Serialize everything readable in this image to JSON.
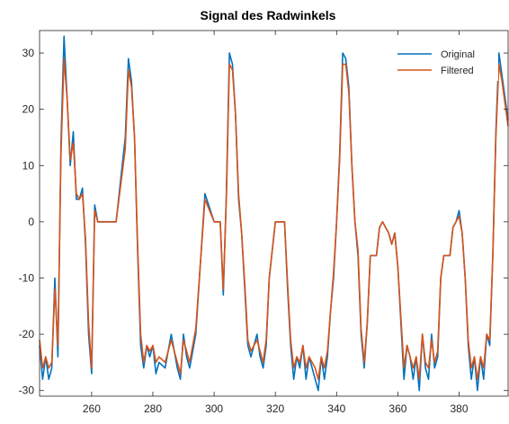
{
  "chart_data": {
    "type": "line",
    "title": "Signal des Radwinkels",
    "xlabel": "",
    "ylabel": "",
    "xlim": [
      243,
      396
    ],
    "ylim": [
      -31,
      34
    ],
    "xticks": [
      260,
      280,
      300,
      320,
      340,
      360,
      380
    ],
    "yticks": [
      -30,
      -20,
      -10,
      0,
      10,
      20,
      30
    ],
    "legend_position": "top-right",
    "series": [
      {
        "name": "Original",
        "color": "#0072BD",
        "x": [
          243,
          244,
          245,
          246,
          247,
          248,
          249,
          250,
          251,
          252,
          253,
          254,
          255,
          256,
          257,
          258,
          259,
          260,
          261,
          262,
          264,
          268,
          271,
          272,
          273,
          274,
          275,
          276,
          277,
          278,
          279,
          280,
          281,
          282,
          284,
          286,
          288,
          289,
          290,
          291,
          292,
          294,
          297,
          300,
          302,
          303,
          304,
          305,
          306,
          307,
          308,
          309,
          310,
          311,
          312,
          313,
          314,
          315,
          316,
          317,
          318,
          320,
          321,
          322,
          323,
          324,
          325,
          326,
          327,
          328,
          329,
          330,
          331,
          332,
          333,
          334,
          335,
          336,
          337,
          338,
          339,
          340,
          341,
          342,
          343,
          344,
          345,
          346,
          347,
          348,
          349,
          350,
          351,
          352,
          353,
          354,
          355,
          356,
          357,
          358,
          359,
          360,
          361,
          362,
          363,
          364,
          365,
          366,
          367,
          368,
          369,
          370,
          371,
          372,
          373,
          374,
          375,
          376,
          377,
          378,
          379,
          380,
          381,
          382,
          383,
          384,
          385,
          386,
          387,
          388,
          389,
          390,
          391,
          392,
          393,
          394,
          395,
          396
        ],
        "y": [
          -22,
          -28,
          -24,
          -28,
          -26,
          -10,
          -24,
          14,
          33,
          22,
          10,
          16,
          4,
          4,
          6,
          -4,
          -20,
          -27,
          3,
          0,
          0,
          0,
          15,
          29,
          25,
          15,
          -5,
          -22,
          -26,
          -22,
          -24,
          -22,
          -27,
          -25,
          -26,
          -20,
          -26,
          -28,
          -20,
          -24,
          -26,
          -20,
          5,
          0,
          0,
          -13,
          5,
          30,
          28,
          19,
          4,
          -2,
          -12,
          -22,
          -24,
          -22,
          -20,
          -24,
          -26,
          -22,
          -10,
          0,
          0,
          0,
          0,
          -12,
          -22,
          -28,
          -24,
          -26,
          -22,
          -28,
          -24,
          -26,
          -28,
          -30,
          -24,
          -28,
          -24,
          -16,
          -10,
          0,
          12,
          30,
          29,
          24,
          10,
          0,
          -6,
          -20,
          -26,
          -18,
          -6,
          -6,
          -6,
          -1,
          0,
          -1,
          -2,
          -4,
          -2,
          -8,
          -18,
          -28,
          -22,
          -24,
          -28,
          -24,
          -30,
          -20,
          -26,
          -28,
          -20,
          -26,
          -24,
          -10,
          -6,
          -6,
          -6,
          -1,
          0,
          2,
          -2,
          -10,
          -22,
          -28,
          -24,
          -30,
          -24,
          -28,
          -20,
          -22,
          -6,
          16,
          30,
          26,
          22,
          18
        ]
      },
      {
        "name": "Filtered",
        "color": "#D95319",
        "x": [
          243,
          244,
          245,
          246,
          247,
          248,
          249,
          250,
          251,
          252,
          253,
          254,
          255,
          256,
          257,
          258,
          259,
          260,
          261,
          262,
          264,
          268,
          271,
          272,
          273,
          274,
          275,
          276,
          277,
          278,
          279,
          280,
          281,
          282,
          284,
          286,
          288,
          289,
          290,
          291,
          292,
          294,
          297,
          300,
          302,
          303,
          304,
          305,
          306,
          307,
          308,
          309,
          310,
          311,
          312,
          313,
          314,
          315,
          316,
          317,
          318,
          320,
          321,
          322,
          323,
          324,
          325,
          326,
          327,
          328,
          329,
          330,
          331,
          332,
          333,
          334,
          335,
          336,
          337,
          338,
          339,
          340,
          341,
          342,
          343,
          344,
          345,
          346,
          347,
          348,
          349,
          350,
          351,
          352,
          353,
          354,
          355,
          356,
          357,
          358,
          359,
          360,
          361,
          362,
          363,
          364,
          365,
          366,
          367,
          368,
          369,
          370,
          371,
          372,
          373,
          374,
          375,
          376,
          377,
          378,
          379,
          380,
          381,
          382,
          383,
          384,
          385,
          386,
          387,
          388,
          389,
          390,
          391,
          392,
          393,
          394,
          395,
          396
        ],
        "y": [
          -21,
          -26,
          -24,
          -26,
          -25,
          -12,
          -22,
          12,
          29,
          22,
          11,
          14,
          5,
          4,
          5,
          -3,
          -18,
          -26,
          2,
          0,
          0,
          0,
          13,
          27,
          24,
          15,
          -4,
          -20,
          -25,
          -22,
          -23,
          -22,
          -25,
          -24,
          -25,
          -21,
          -25,
          -27,
          -21,
          -23,
          -25,
          -19,
          4,
          0,
          0,
          -12,
          4,
          28,
          27,
          19,
          5,
          -2,
          -11,
          -21,
          -23,
          -22,
          -21,
          -23,
          -25,
          -21,
          -10,
          0,
          0,
          0,
          0,
          -11,
          -21,
          -26,
          -24,
          -25,
          -22,
          -26,
          -24,
          -25,
          -26,
          -28,
          -24,
          -26,
          -23,
          -16,
          -9,
          0,
          11,
          28,
          28,
          23,
          10,
          0,
          -5,
          -19,
          -25,
          -18,
          -6,
          -6,
          -6,
          -1,
          0,
          -1,
          -2,
          -4,
          -2,
          -8,
          -17,
          -26,
          -22,
          -24,
          -26,
          -24,
          -28,
          -20,
          -25,
          -26,
          -21,
          -25,
          -23,
          -10,
          -6,
          -6,
          -6,
          -1,
          0,
          1,
          -2,
          -10,
          -21,
          -26,
          -24,
          -28,
          -24,
          -26,
          -20,
          -21,
          -6,
          15,
          28,
          25,
          21,
          17
        ]
      }
    ]
  }
}
